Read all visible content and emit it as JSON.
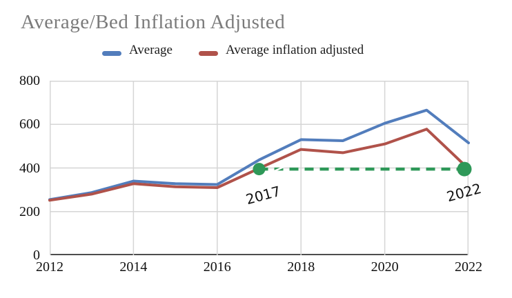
{
  "title": "Average/Bed Inflation Adjusted",
  "chart_data": {
    "type": "line",
    "title": "Average/Bed Inflation Adjusted",
    "x": [
      2012,
      2013,
      2014,
      2015,
      2016,
      2017,
      2018,
      2019,
      2020,
      2021,
      2022
    ],
    "series": [
      {
        "name": "Average",
        "color": "#527dbc",
        "values": [
          255,
          287,
          340,
          328,
          324,
          437,
          530,
          525,
          605,
          665,
          515
        ]
      },
      {
        "name": "Average inflation adjusted",
        "color": "#b0524a",
        "values": [
          252,
          280,
          328,
          314,
          310,
          398,
          485,
          470,
          510,
          578,
          396
        ]
      }
    ],
    "xlim": [
      2012,
      2022
    ],
    "ylim": [
      0,
      800
    ],
    "x_ticks": [
      2012,
      2014,
      2016,
      2018,
      2020,
      2022
    ],
    "y_ticks": [
      0,
      200,
      400,
      600,
      800
    ],
    "grid": "on",
    "grid_color": "#d5d5d5",
    "axis_color": "#4d4d4d",
    "legend_position": "top"
  },
  "annotation": {
    "type": "dashed-comparison-line",
    "color": "#2e9858",
    "value": 395,
    "x_start": 2017,
    "x_end": 2022,
    "start_label": "2017",
    "end_label": "2022"
  }
}
